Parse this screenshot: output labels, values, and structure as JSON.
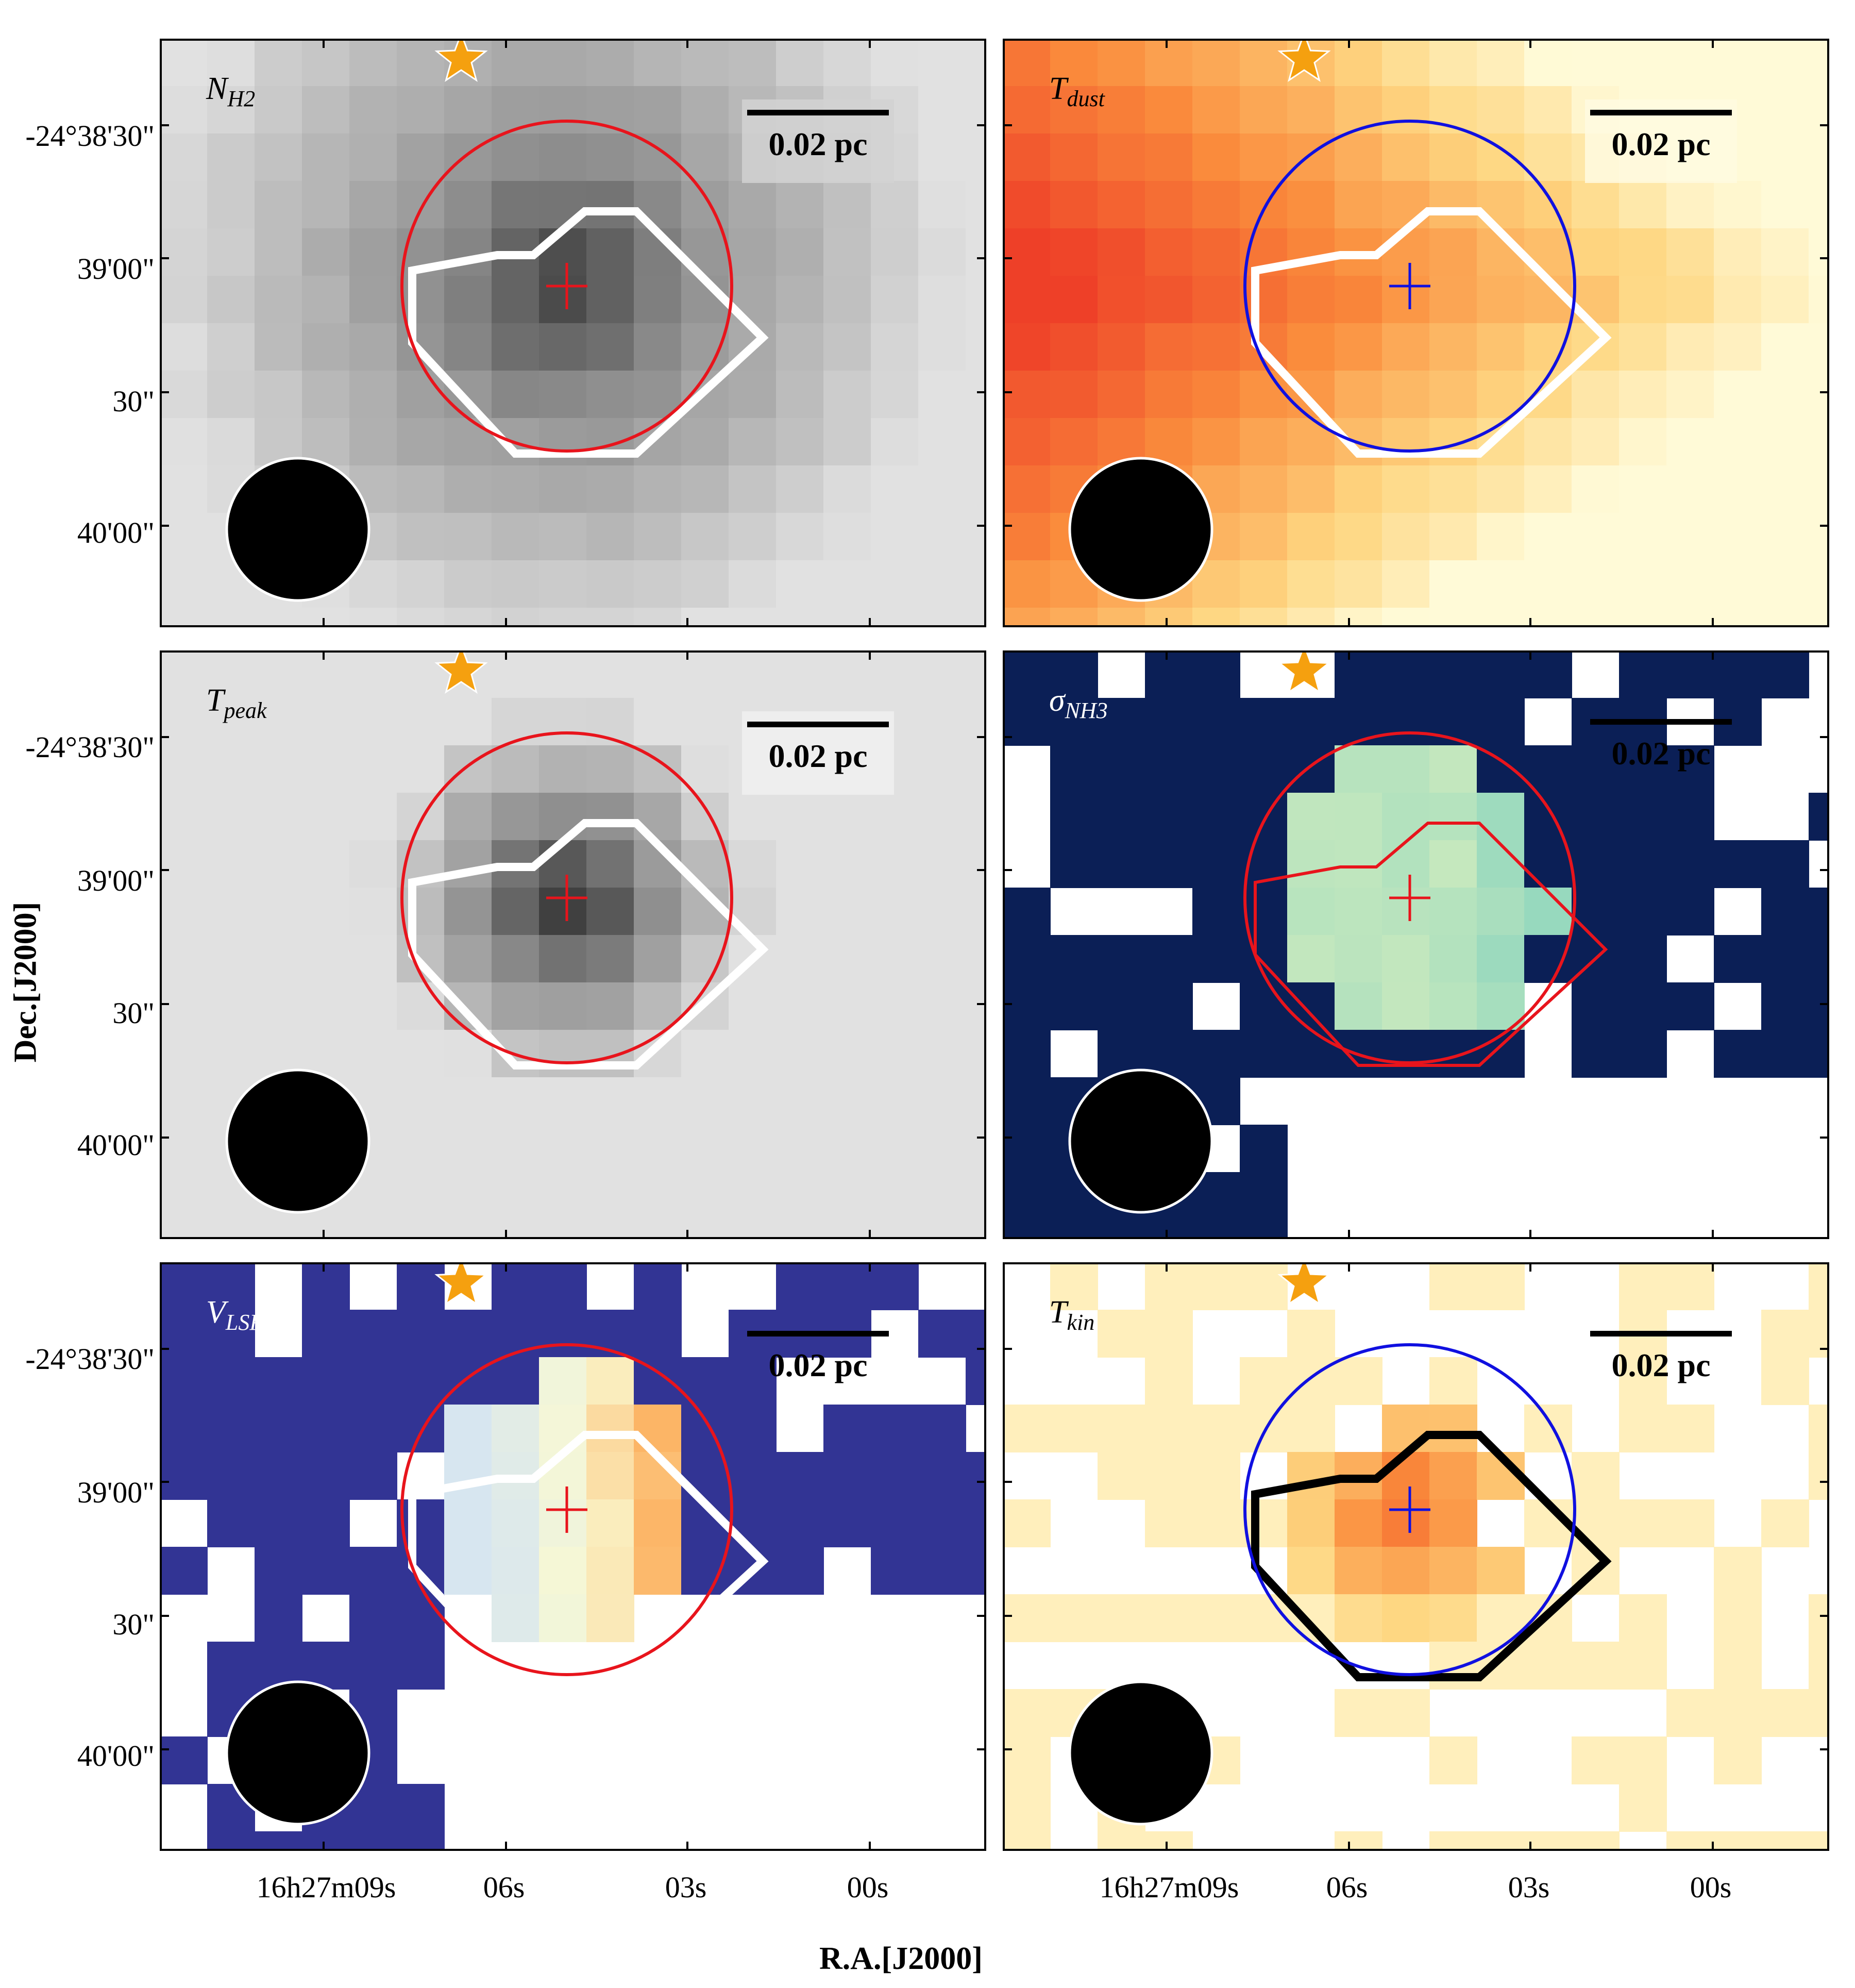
{
  "figure": {
    "axes": {
      "ylabel": "Dec.[J2000]",
      "xlabel": "R.A.[J2000]",
      "yticks": [
        "-24°38'30\"",
        "39'00\"",
        "30\"",
        "40'00\""
      ],
      "xticks": [
        "16h27m09s",
        "06s",
        "03s",
        "00s"
      ]
    },
    "scalebar_text": "0.02 pc",
    "panels": [
      {
        "id": "nh2",
        "base": "N",
        "sub": "H2",
        "colormap": "gray",
        "circle_color": "#e8141c",
        "contour_color": "#ffffff",
        "cross_color": "#e8141c",
        "label_light": false
      },
      {
        "id": "tdust",
        "base": "T",
        "sub": "dust",
        "colormap": "ylorrd",
        "circle_color": "#1010e0",
        "contour_color": "#ffffff",
        "cross_color": "#1010e0",
        "label_light": false
      },
      {
        "id": "tpeak",
        "base": "T",
        "sub": "peak",
        "colormap": "gray",
        "circle_color": "#e8141c",
        "contour_color": "#ffffff",
        "cross_color": "#e8141c",
        "label_light": false
      },
      {
        "id": "sigma",
        "base": "σ",
        "sub": "NH3",
        "colormap": "ylgnbu",
        "circle_color": "#e8141c",
        "contour_color": "#e8141c",
        "cross_color": "#e8141c",
        "label_light": true
      },
      {
        "id": "vlsr",
        "base": "V",
        "sub": "LSR",
        "colormap": "rdylbu",
        "circle_color": "#e8141c",
        "contour_color": "#ffffff",
        "cross_color": "#e8141c",
        "label_light": true
      },
      {
        "id": "tkin",
        "base": "T",
        "sub": "kin",
        "colormap": "ylorrd",
        "circle_color": "#1010e0",
        "contour_color": "#000000",
        "cross_color": "#1010e0",
        "label_light": false
      }
    ],
    "marker_colors": {
      "star": "#f5a00f",
      "beam": "#000000",
      "beam_edge": "#ffffff"
    }
  }
}
